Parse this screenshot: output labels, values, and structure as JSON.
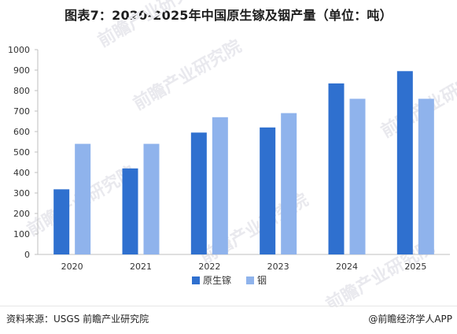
{
  "title": "图表7：2020-2025年中国原生镓及铟产量（单位：吨）",
  "footer": {
    "source": "资料来源：USGS  前瞻产业研究院",
    "brand": "@前瞻经济学人APP"
  },
  "watermark": "前瞻产业研究院",
  "colors": {
    "series1": "#2f70cf",
    "series2": "#8fb3ec",
    "axis": "#bfbfbf",
    "tick_text": "#333333"
  },
  "chart_data": {
    "type": "bar",
    "categories": [
      "2020",
      "2021",
      "2022",
      "2023",
      "2024",
      "2025"
    ],
    "series": [
      {
        "name": "原生镓",
        "values": [
          318,
          420,
          595,
          620,
          835,
          895
        ]
      },
      {
        "name": "铟",
        "values": [
          540,
          540,
          670,
          690,
          760,
          760
        ]
      }
    ],
    "ylim": [
      0,
      1000
    ],
    "yticks": [
      0,
      100,
      200,
      300,
      400,
      500,
      600,
      700,
      800,
      900,
      1000
    ],
    "grid": false,
    "legend": "bottom"
  }
}
